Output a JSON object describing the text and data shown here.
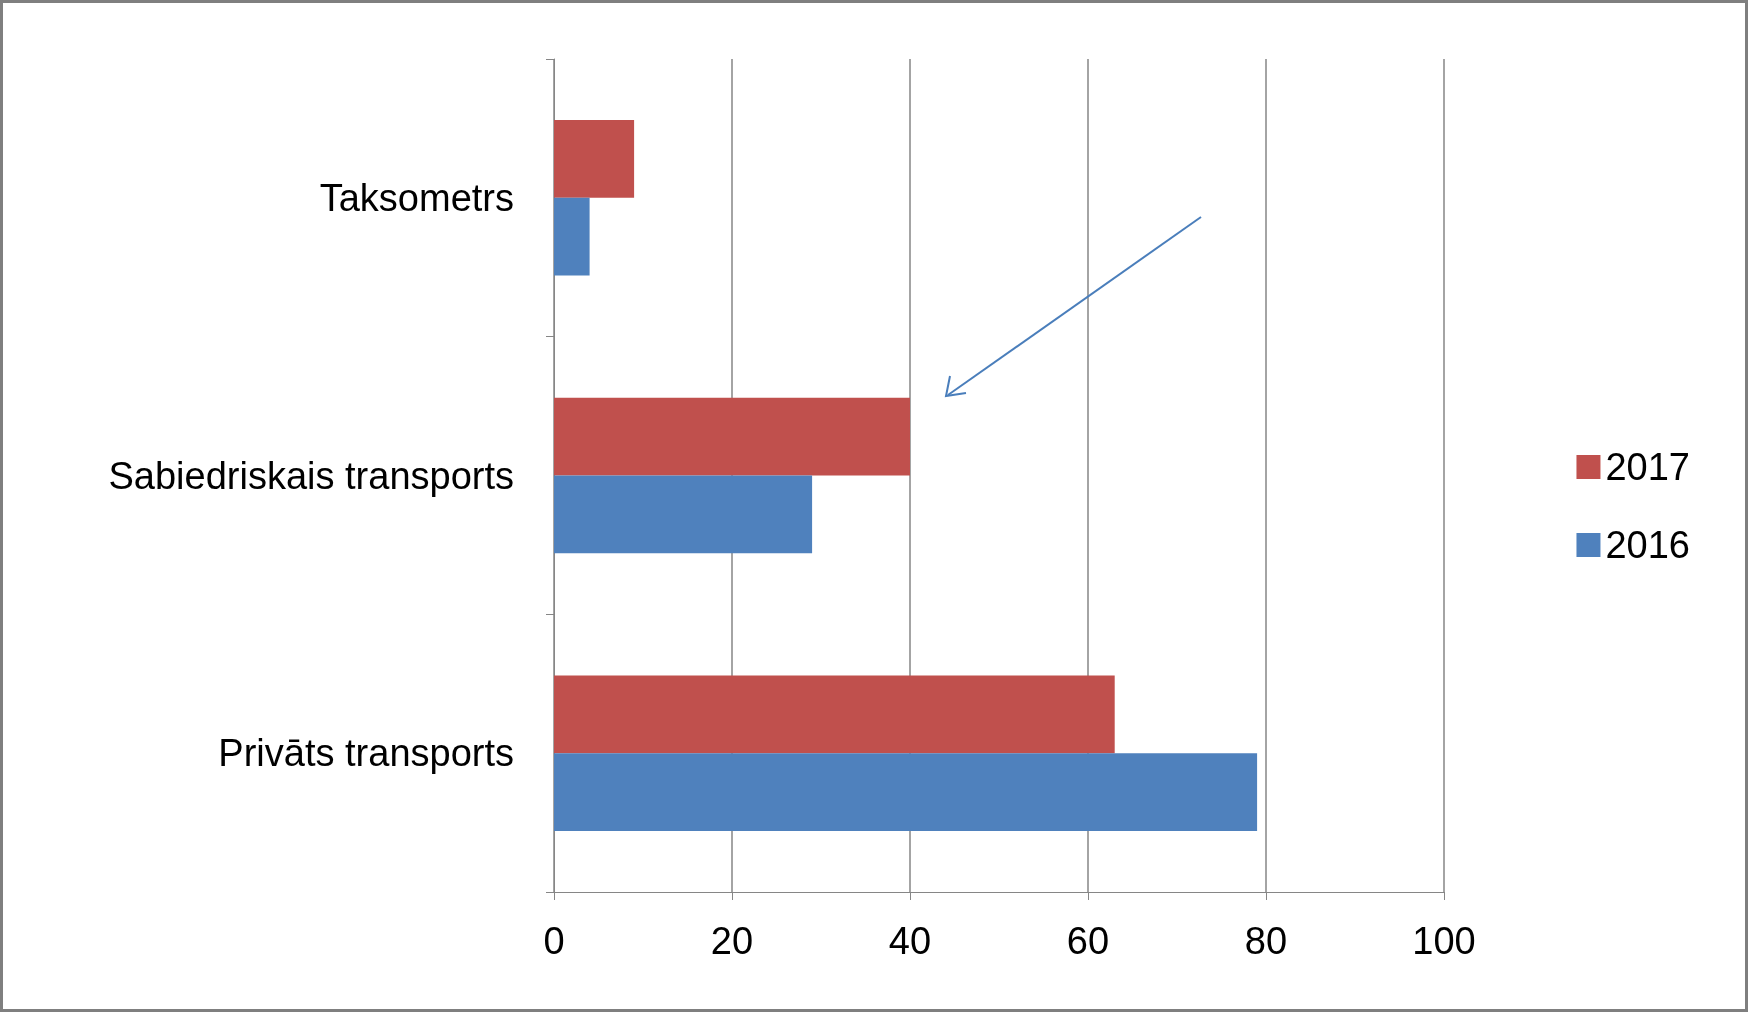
{
  "chart_data": {
    "type": "bar",
    "orientation": "horizontal",
    "categories": [
      "Taksometrs",
      "Sabiedriskais transports",
      "Privāts transports"
    ],
    "series": [
      {
        "name": "2017",
        "color": "#c0504d",
        "values": [
          9,
          40,
          63
        ]
      },
      {
        "name": "2016",
        "color": "#4f81bd",
        "values": [
          4,
          29,
          79
        ]
      }
    ],
    "xlim": [
      0,
      100
    ],
    "xticks": [
      0,
      20,
      40,
      60,
      80,
      100
    ],
    "grid": "x",
    "legend": "right"
  }
}
